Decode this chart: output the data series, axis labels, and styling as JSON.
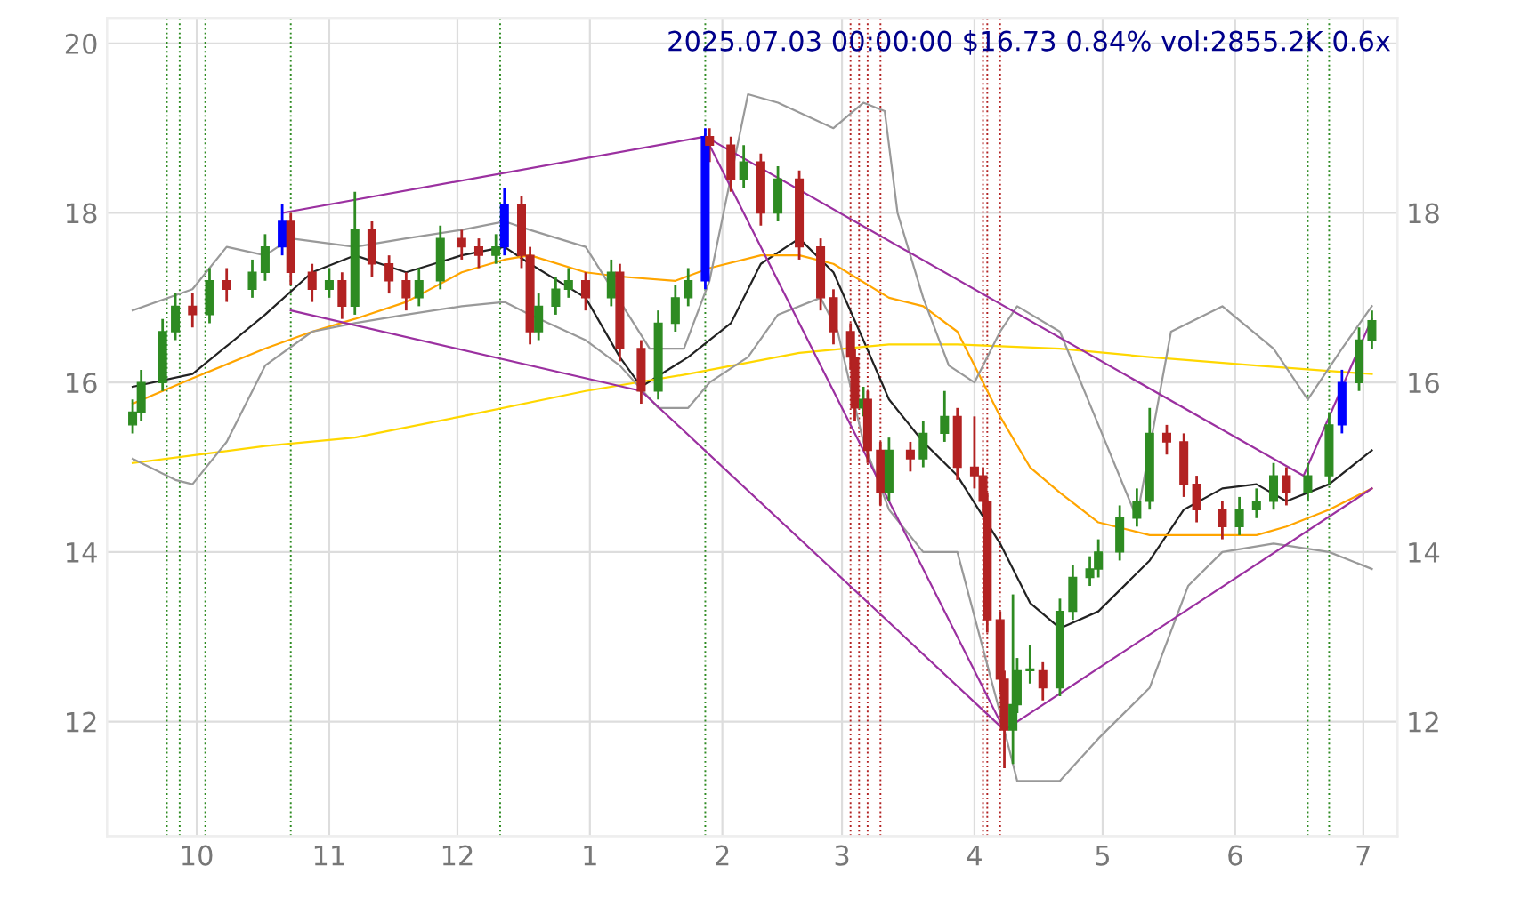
{
  "chart_data": {
    "type": "candlestick",
    "title": "2025.07.03 00:00:00 $16.73 0.84% vol:2855.2K 0.6x",
    "x": [
      "2024-09-16",
      "2024-09-18",
      "2024-09-23",
      "2024-09-26",
      "2024-09-30",
      "2024-10-04",
      "2024-10-08",
      "2024-10-14",
      "2024-10-17",
      "2024-10-21",
      "2024-10-23",
      "2024-10-28",
      "2024-11-01",
      "2024-11-04",
      "2024-11-07",
      "2024-11-11",
      "2024-11-15",
      "2024-11-19",
      "2024-11-22",
      "2024-11-27",
      "2024-12-02",
      "2024-12-06",
      "2024-12-10",
      "2024-12-12",
      "2024-12-16",
      "2024-12-18",
      "2024-12-20",
      "2024-12-24",
      "2024-12-27",
      "2024-12-31",
      "2025-01-06",
      "2025-01-08",
      "2025-01-13",
      "2025-01-17",
      "2025-01-21",
      "2025-01-24",
      "2025-01-28",
      "2025-01-29",
      "2025-02-03",
      "2025-02-06",
      "2025-02-10",
      "2025-02-14",
      "2025-02-19",
      "2025-02-24",
      "2025-02-27",
      "2025-03-03",
      "2025-03-04",
      "2025-03-06",
      "2025-03-07",
      "2025-03-10",
      "2025-03-12",
      "2025-03-17",
      "2025-03-20",
      "2025-03-25",
      "2025-03-28",
      "2025-04-01",
      "2025-04-03",
      "2025-04-04",
      "2025-04-07",
      "2025-04-08",
      "2025-04-10",
      "2025-04-11",
      "2025-04-14",
      "2025-04-17",
      "2025-04-21",
      "2025-04-24",
      "2025-04-28",
      "2025-04-30",
      "2025-05-05",
      "2025-05-09",
      "2025-05-12",
      "2025-05-16",
      "2025-05-20",
      "2025-05-23",
      "2025-05-29",
      "2025-06-02",
      "2025-06-06",
      "2025-06-10",
      "2025-06-13",
      "2025-06-18",
      "2025-06-23",
      "2025-06-26",
      "2025-06-30",
      "2025-07-03"
    ],
    "ohlc": [
      [
        15.5,
        15.8,
        15.4,
        15.65
      ],
      [
        15.65,
        16.15,
        15.55,
        16.0
      ],
      [
        16.0,
        16.75,
        15.9,
        16.6
      ],
      [
        16.6,
        17.05,
        16.5,
        16.9
      ],
      [
        16.9,
        17.05,
        16.65,
        16.8
      ],
      [
        16.8,
        17.35,
        16.7,
        17.2
      ],
      [
        17.2,
        17.35,
        16.95,
        17.1
      ],
      [
        17.1,
        17.45,
        17.0,
        17.3
      ],
      [
        17.3,
        17.75,
        17.2,
        17.6
      ],
      [
        17.6,
        18.1,
        17.5,
        17.9
      ],
      [
        17.9,
        18.0,
        17.15,
        17.3
      ],
      [
        17.3,
        17.4,
        16.95,
        17.1
      ],
      [
        17.1,
        17.35,
        17.0,
        17.2
      ],
      [
        17.2,
        17.3,
        16.75,
        16.9
      ],
      [
        16.9,
        18.25,
        16.8,
        17.8
      ],
      [
        17.8,
        17.9,
        17.25,
        17.4
      ],
      [
        17.4,
        17.5,
        17.05,
        17.2
      ],
      [
        17.2,
        17.3,
        16.85,
        17.0
      ],
      [
        17.0,
        17.35,
        16.9,
        17.2
      ],
      [
        17.2,
        17.85,
        17.1,
        17.7
      ],
      [
        17.7,
        17.8,
        17.45,
        17.6
      ],
      [
        17.6,
        17.7,
        17.35,
        17.5
      ],
      [
        17.5,
        17.75,
        17.4,
        17.6
      ],
      [
        17.6,
        18.3,
        17.5,
        18.1
      ],
      [
        18.1,
        18.2,
        17.35,
        17.5
      ],
      [
        17.5,
        17.6,
        16.45,
        16.6
      ],
      [
        16.6,
        17.05,
        16.5,
        16.9
      ],
      [
        16.9,
        17.25,
        16.8,
        17.1
      ],
      [
        17.1,
        17.35,
        17.0,
        17.2
      ],
      [
        17.2,
        17.3,
        16.85,
        17.0
      ],
      [
        17.0,
        17.45,
        16.9,
        17.3
      ],
      [
        17.3,
        17.4,
        16.25,
        16.4
      ],
      [
        16.4,
        16.5,
        15.75,
        15.9
      ],
      [
        15.9,
        16.85,
        15.8,
        16.7
      ],
      [
        16.7,
        17.15,
        16.6,
        17.0
      ],
      [
        17.0,
        17.35,
        16.9,
        17.2
      ],
      [
        17.2,
        19.0,
        17.1,
        18.9
      ],
      [
        18.9,
        19.0,
        18.6,
        18.8
      ],
      [
        18.8,
        18.9,
        18.25,
        18.4
      ],
      [
        18.4,
        18.8,
        18.3,
        18.6
      ],
      [
        18.6,
        18.7,
        17.85,
        18.0
      ],
      [
        18.0,
        18.55,
        17.9,
        18.4
      ],
      [
        18.4,
        18.5,
        17.45,
        17.6
      ],
      [
        17.6,
        17.7,
        16.85,
        17.0
      ],
      [
        17.0,
        17.1,
        16.45,
        16.6
      ],
      [
        16.6,
        16.7,
        16.15,
        16.3
      ],
      [
        16.3,
        16.4,
        15.55,
        15.7
      ],
      [
        15.7,
        15.95,
        15.6,
        15.8
      ],
      [
        15.8,
        15.9,
        15.05,
        15.2
      ],
      [
        15.2,
        15.3,
        14.55,
        14.7
      ],
      [
        14.7,
        15.35,
        14.6,
        15.2
      ],
      [
        15.2,
        15.3,
        14.95,
        15.1
      ],
      [
        15.1,
        15.55,
        15.0,
        15.4
      ],
      [
        15.4,
        15.9,
        15.3,
        15.6
      ],
      [
        15.6,
        15.7,
        14.85,
        15.0
      ],
      [
        15.0,
        15.6,
        14.75,
        14.9
      ],
      [
        14.9,
        15.0,
        14.45,
        14.6
      ],
      [
        14.6,
        14.7,
        13.05,
        13.2
      ],
      [
        13.2,
        13.3,
        12.35,
        12.5
      ],
      [
        12.5,
        12.6,
        11.45,
        11.9
      ],
      [
        11.9,
        13.5,
        11.5,
        12.2
      ],
      [
        12.2,
        12.75,
        12.1,
        12.6
      ],
      [
        12.6,
        12.9,
        12.45,
        12.6
      ],
      [
        12.6,
        12.7,
        12.25,
        12.4
      ],
      [
        12.4,
        13.45,
        12.3,
        13.3
      ],
      [
        13.3,
        13.85,
        13.2,
        13.7
      ],
      [
        13.7,
        13.95,
        13.6,
        13.8
      ],
      [
        13.8,
        14.15,
        13.7,
        14.0
      ],
      [
        14.0,
        14.55,
        13.9,
        14.4
      ],
      [
        14.4,
        14.75,
        14.3,
        14.6
      ],
      [
        14.6,
        15.7,
        14.5,
        15.4
      ],
      [
        15.4,
        15.5,
        15.15,
        15.3
      ],
      [
        15.3,
        15.4,
        14.65,
        14.8
      ],
      [
        14.8,
        14.9,
        14.35,
        14.5
      ],
      [
        14.5,
        14.6,
        14.15,
        14.3
      ],
      [
        14.3,
        14.65,
        14.2,
        14.5
      ],
      [
        14.5,
        14.75,
        14.4,
        14.6
      ],
      [
        14.6,
        15.05,
        14.5,
        14.9
      ],
      [
        14.9,
        15.0,
        14.55,
        14.7
      ],
      [
        14.7,
        15.05,
        14.6,
        14.9
      ],
      [
        14.9,
        15.65,
        14.8,
        15.5
      ],
      [
        15.5,
        16.15,
        15.4,
        16.0
      ],
      [
        16.0,
        16.65,
        15.9,
        16.5
      ],
      [
        16.5,
        16.85,
        16.4,
        16.73
      ]
    ],
    "colors": [
      "#2e8b22",
      "#2e8b22",
      "#2e8b22",
      "#2e8b22",
      "#b22222",
      "#2e8b22",
      "#b22222",
      "#2e8b22",
      "#2e8b22",
      "#0000ff",
      "#b22222",
      "#b22222",
      "#2e8b22",
      "#b22222",
      "#2e8b22",
      "#b22222",
      "#b22222",
      "#b22222",
      "#2e8b22",
      "#2e8b22",
      "#b22222",
      "#b22222",
      "#2e8b22",
      "#0000ff",
      "#b22222",
      "#b22222",
      "#2e8b22",
      "#2e8b22",
      "#2e8b22",
      "#b22222",
      "#2e8b22",
      "#b22222",
      "#b22222",
      "#2e8b22",
      "#2e8b22",
      "#2e8b22",
      "#0000ff",
      "#b22222",
      "#b22222",
      "#2e8b22",
      "#b22222",
      "#2e8b22",
      "#b22222",
      "#b22222",
      "#b22222",
      "#b22222",
      "#b22222",
      "#2e8b22",
      "#b22222",
      "#b22222",
      "#2e8b22",
      "#b22222",
      "#2e8b22",
      "#2e8b22",
      "#b22222",
      "#b22222",
      "#b22222",
      "#b22222",
      "#b22222",
      "#b22222",
      "#2e8b22",
      "#2e8b22",
      "#2e8b22",
      "#b22222",
      "#2e8b22",
      "#2e8b22",
      "#2e8b22",
      "#2e8b22",
      "#2e8b22",
      "#2e8b22",
      "#2e8b22",
      "#b22222",
      "#b22222",
      "#b22222",
      "#b22222",
      "#2e8b22",
      "#2e8b22",
      "#2e8b22",
      "#b22222",
      "#2e8b22",
      "#2e8b22",
      "#0000ff",
      "#2e8b22",
      "#2e8b22"
    ],
    "series": [
      {
        "type": "line",
        "color": "#222222",
        "x": [
          "2024-09-16",
          "2024-09-30",
          "2024-10-17",
          "2024-10-28",
          "2024-11-07",
          "2024-11-19",
          "2024-12-02",
          "2024-12-12",
          "2024-12-18",
          "2024-12-31",
          "2025-01-08",
          "2025-01-13",
          "2025-01-24",
          "2025-02-03",
          "2025-02-10",
          "2025-02-19",
          "2025-02-27",
          "2025-03-06",
          "2025-03-12",
          "2025-03-20",
          "2025-03-28",
          "2025-04-07",
          "2025-04-14",
          "2025-04-21",
          "2025-04-30",
          "2025-05-12",
          "2025-05-20",
          "2025-05-29",
          "2025-06-06",
          "2025-06-13",
          "2025-06-23",
          "2025-07-03"
        ],
        "values": [
          15.95,
          16.1,
          16.8,
          17.3,
          17.5,
          17.3,
          17.5,
          17.6,
          17.4,
          17.0,
          16.3,
          15.95,
          16.3,
          16.7,
          17.4,
          17.7,
          17.3,
          16.5,
          15.8,
          15.3,
          14.9,
          14.1,
          13.4,
          13.1,
          13.3,
          13.9,
          14.5,
          14.75,
          14.8,
          14.6,
          14.8,
          15.2
        ]
      },
      {
        "type": "line",
        "color": "#ffa500",
        "x": [
          "2024-09-16",
          "2024-09-30",
          "2024-10-17",
          "2024-10-28",
          "2024-11-07",
          "2024-11-19",
          "2024-12-02",
          "2024-12-12",
          "2024-12-18",
          "2024-12-31",
          "2025-01-08",
          "2025-01-21",
          "2025-01-29",
          "2025-02-10",
          "2025-02-19",
          "2025-02-27",
          "2025-03-12",
          "2025-03-20",
          "2025-03-28",
          "2025-04-07",
          "2025-04-14",
          "2025-04-21",
          "2025-04-30",
          "2025-05-12",
          "2025-05-20",
          "2025-05-29",
          "2025-06-06",
          "2025-06-13",
          "2025-06-23",
          "2025-07-03"
        ],
        "values": [
          15.75,
          16.05,
          16.4,
          16.6,
          16.75,
          16.95,
          17.3,
          17.45,
          17.5,
          17.3,
          17.25,
          17.2,
          17.35,
          17.5,
          17.5,
          17.4,
          17.0,
          16.9,
          16.6,
          15.6,
          15.0,
          14.7,
          14.35,
          14.2,
          14.2,
          14.2,
          14.2,
          14.3,
          14.5,
          14.75
        ]
      },
      {
        "type": "line",
        "color": "#ffd700",
        "x": [
          "2024-09-16",
          "2024-10-17",
          "2024-11-07",
          "2024-12-02",
          "2024-12-31",
          "2025-01-24",
          "2025-02-19",
          "2025-03-12",
          "2025-03-28",
          "2025-04-21",
          "2025-05-12",
          "2025-06-06",
          "2025-07-03"
        ],
        "values": [
          15.05,
          15.25,
          15.35,
          15.6,
          15.9,
          16.1,
          16.35,
          16.45,
          16.45,
          16.4,
          16.3,
          16.2,
          16.1
        ]
      },
      {
        "type": "line",
        "color": "#999999",
        "x": [
          "2024-09-16",
          "2024-09-30",
          "2024-10-08",
          "2024-10-17",
          "2024-10-23",
          "2024-11-07",
          "2024-11-19",
          "2024-12-02",
          "2024-12-12",
          "2024-12-18",
          "2024-12-31",
          "2025-01-15",
          "2025-01-23",
          "2025-01-29",
          "2025-02-07",
          "2025-02-14",
          "2025-02-27",
          "2025-03-06",
          "2025-03-11",
          "2025-03-14",
          "2025-03-20",
          "2025-03-26",
          "2025-04-01",
          "2025-04-07",
          "2025-04-11",
          "2025-04-21",
          "2025-04-30",
          "2025-05-09",
          "2025-05-17",
          "2025-05-29",
          "2025-06-10",
          "2025-06-18",
          "2025-06-26",
          "2025-07-03"
        ],
        "values": [
          16.85,
          17.1,
          17.6,
          17.5,
          17.7,
          17.6,
          17.7,
          17.8,
          17.9,
          17.8,
          17.6,
          16.4,
          16.4,
          17.2,
          19.4,
          19.3,
          19.0,
          19.3,
          19.2,
          18.0,
          17.0,
          16.2,
          16.0,
          16.6,
          16.9,
          16.6,
          15.5,
          14.4,
          16.6,
          16.9,
          16.4,
          15.8,
          16.4,
          16.9
        ]
      },
      {
        "type": "line",
        "color": "#999999",
        "x": [
          "2024-09-16",
          "2024-09-26",
          "2024-09-30",
          "2024-10-08",
          "2024-10-17",
          "2024-10-28",
          "2024-11-07",
          "2024-11-19",
          "2024-12-02",
          "2024-12-12",
          "2024-12-18",
          "2024-12-31",
          "2025-01-08",
          "2025-01-17",
          "2025-01-24",
          "2025-01-29",
          "2025-02-07",
          "2025-02-14",
          "2025-02-24",
          "2025-02-28",
          "2025-03-06",
          "2025-03-12",
          "2025-03-20",
          "2025-03-28",
          "2025-04-07",
          "2025-04-11",
          "2025-04-21",
          "2025-04-30",
          "2025-05-12",
          "2025-05-21",
          "2025-05-29",
          "2025-06-10",
          "2025-06-23",
          "2025-07-03"
        ],
        "values": [
          15.1,
          14.85,
          14.8,
          15.3,
          16.2,
          16.6,
          16.7,
          16.8,
          16.9,
          16.95,
          16.8,
          16.5,
          16.2,
          15.7,
          15.7,
          16.0,
          16.3,
          16.8,
          17.0,
          16.6,
          15.3,
          14.5,
          14.0,
          14.0,
          12.1,
          11.3,
          11.3,
          11.8,
          12.4,
          13.6,
          14.0,
          14.1,
          14.0,
          13.8
        ]
      },
      {
        "type": "line",
        "color": "#9b30a0",
        "x": [
          "2024-10-21",
          "2025-01-28",
          "2025-04-08",
          "2025-07-03"
        ],
        "values": [
          18.0,
          18.9,
          11.9,
          14.75
        ]
      },
      {
        "type": "line",
        "color": "#9b30a0",
        "x": [
          "2024-10-23",
          "2025-01-13",
          "2025-04-08"
        ],
        "values": [
          16.85,
          15.9,
          11.9
        ]
      },
      {
        "type": "line",
        "color": "#9b30a0",
        "x": [
          "2025-01-28",
          "2025-06-17",
          "2025-07-03"
        ],
        "values": [
          18.9,
          14.9,
          16.75
        ]
      }
    ],
    "ref_lines": [
      {
        "axis": "x",
        "value": "2024-09-24",
        "color": "#2e8b22",
        "line_style": "dotted"
      },
      {
        "axis": "x",
        "value": "2024-09-27",
        "color": "#2e8b22",
        "line_style": "dotted"
      },
      {
        "axis": "x",
        "value": "2024-10-03",
        "color": "#2e8b22",
        "line_style": "dotted"
      },
      {
        "axis": "x",
        "value": "2024-10-23",
        "color": "#2e8b22",
        "line_style": "dotted"
      },
      {
        "axis": "x",
        "value": "2024-12-11",
        "color": "#2e8b22",
        "line_style": "dotted"
      },
      {
        "axis": "x",
        "value": "2025-01-28",
        "color": "#2e8b22",
        "line_style": "dotted"
      },
      {
        "axis": "x",
        "value": "2025-03-03",
        "color": "#b22222",
        "line_style": "dotted"
      },
      {
        "axis": "x",
        "value": "2025-03-05",
        "color": "#b22222",
        "line_style": "dotted"
      },
      {
        "axis": "x",
        "value": "2025-03-07",
        "color": "#b22222",
        "line_style": "dotted"
      },
      {
        "axis": "x",
        "value": "2025-03-10",
        "color": "#b22222",
        "line_style": "dotted"
      },
      {
        "axis": "x",
        "value": "2025-04-03",
        "color": "#b22222",
        "line_style": "dotted"
      },
      {
        "axis": "x",
        "value": "2025-04-04",
        "color": "#b22222",
        "line_style": "dotted"
      },
      {
        "axis": "x",
        "value": "2025-04-07",
        "color": "#b22222",
        "line_style": "dotted"
      },
      {
        "axis": "x",
        "value": "2025-06-18",
        "color": "#2e8b22",
        "line_style": "dotted"
      },
      {
        "axis": "x",
        "value": "2025-06-23",
        "color": "#2e8b22",
        "line_style": "dotted"
      }
    ],
    "xlim": [
      "2024-09-10",
      "2025-07-09"
    ],
    "xticks": [
      {
        "value": "2024-10-01",
        "label": "10"
      },
      {
        "value": "2024-11-01",
        "label": "11"
      },
      {
        "value": "2024-12-01",
        "label": "12"
      },
      {
        "value": "2025-01-01",
        "label": "1"
      },
      {
        "value": "2025-02-01",
        "label": "2"
      },
      {
        "value": "2025-03-01",
        "label": "3"
      },
      {
        "value": "2025-04-01",
        "label": "4"
      },
      {
        "value": "2025-05-01",
        "label": "5"
      },
      {
        "value": "2025-06-01",
        "label": "6"
      },
      {
        "value": "2025-07-01",
        "label": "7"
      }
    ],
    "ylim": [
      10.65,
      20.3
    ],
    "yticks": [
      12,
      14,
      16,
      18,
      20
    ],
    "y2lim": [
      10.65,
      20.3
    ],
    "y2ticks": [
      12,
      14,
      16,
      18
    ],
    "grid": true,
    "legend": false
  }
}
